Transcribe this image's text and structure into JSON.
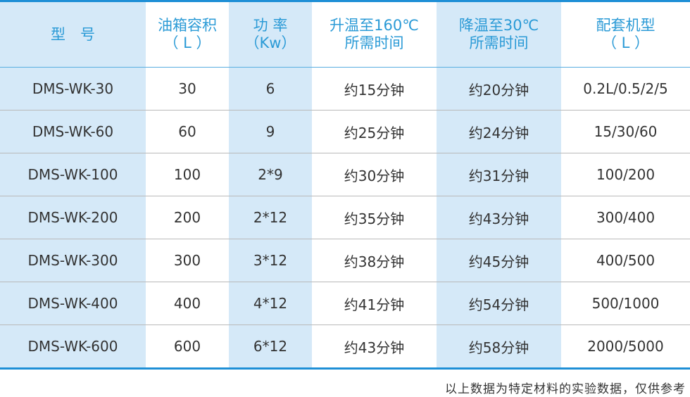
{
  "table": {
    "headers": [
      [
        "型　号"
      ],
      [
        "油箱容积",
        "（ L ）"
      ],
      [
        "功 率",
        "（Kw）"
      ],
      [
        "升温至160℃",
        "所需时间"
      ],
      [
        "降温至30℃",
        "所需时间"
      ],
      [
        "配套机型",
        "（ L ）"
      ]
    ],
    "rows": [
      [
        "DMS-WK-30",
        "30",
        "6",
        "约15分钟",
        "约20分钟",
        "0.2L/0.5/2/5"
      ],
      [
        "DMS-WK-60",
        "60",
        "9",
        "约25分钟",
        "约24分钟",
        "15/30/60"
      ],
      [
        "DMS-WK-100",
        "100",
        "2*9",
        "约30分钟",
        "约31分钟",
        "100/200"
      ],
      [
        "DMS-WK-200",
        "200",
        "2*12",
        "约35分钟",
        "约43分钟",
        "300/400"
      ],
      [
        "DMS-WK-300",
        "300",
        "3*12",
        "约38分钟",
        "约45分钟",
        "400/500"
      ],
      [
        "DMS-WK-400",
        "400",
        "4*12",
        "约41分钟",
        "约54分钟",
        "500/1000"
      ],
      [
        "DMS-WK-600",
        "600",
        "6*12",
        "约43分钟",
        "约58分钟",
        "2000/5000"
      ]
    ]
  },
  "footnote": "以上数据为特定材料的实验数据，仅供参考",
  "colors": {
    "accent": "#1e8fd6",
    "header_text": "#2a9ad6",
    "shaded_column": "#d5e9f8"
  }
}
